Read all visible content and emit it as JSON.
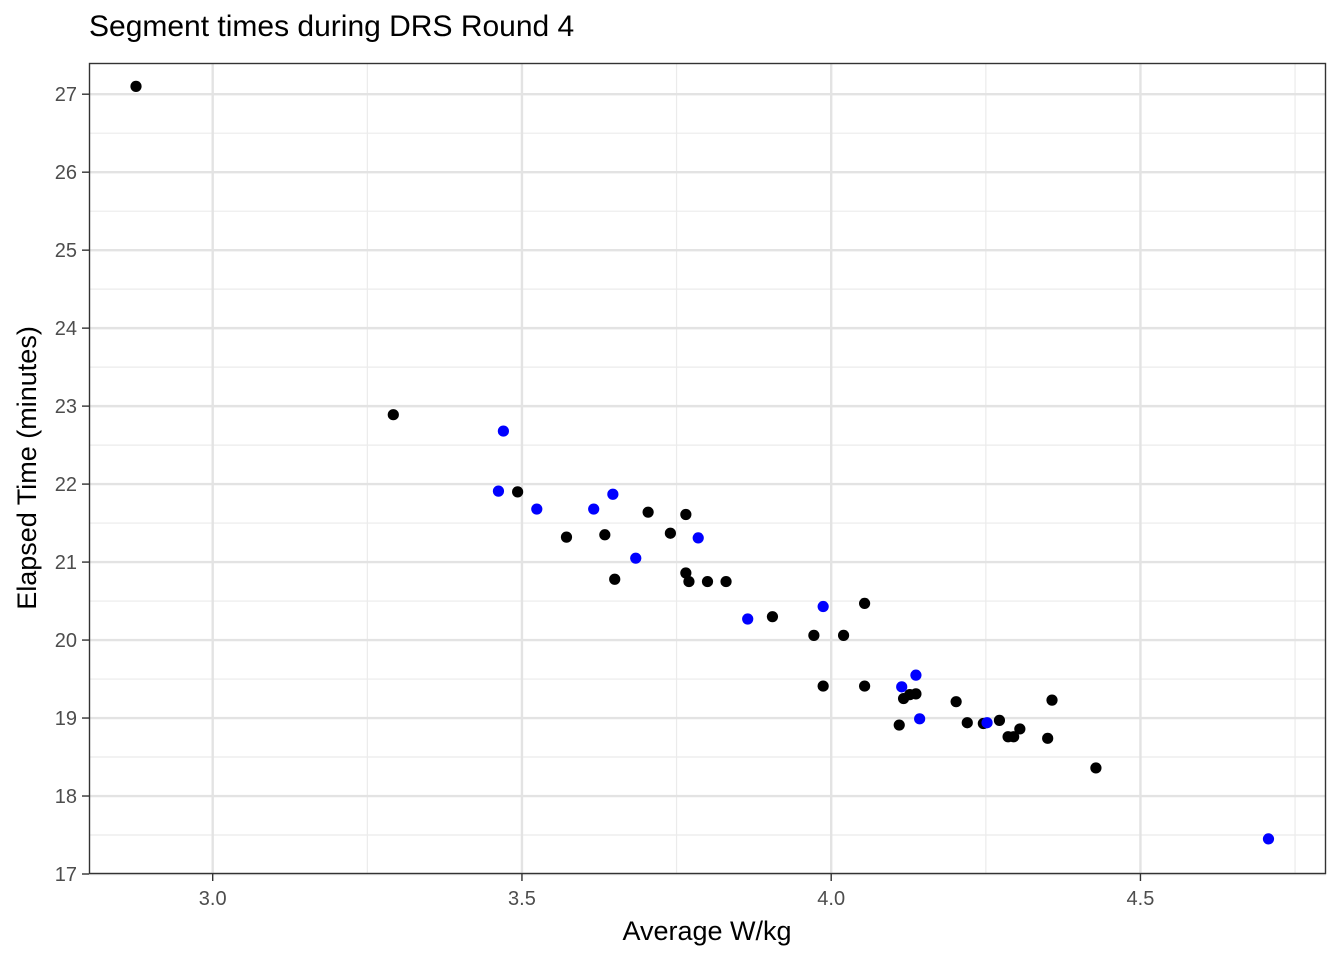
{
  "chart_data": {
    "type": "scatter",
    "title": "Segment times during DRS Round 4",
    "xlabel": "Average W/kg",
    "ylabel": "Elapsed Time (minutes)",
    "xlim": [
      2.8,
      4.8
    ],
    "ylim": [
      17,
      27.4
    ],
    "x_ticks": [
      3.0,
      3.5,
      4.0,
      4.5
    ],
    "x_tick_labels": [
      "3.0",
      "3.5",
      "4.0",
      "4.5"
    ],
    "y_ticks": [
      17,
      18,
      19,
      20,
      21,
      22,
      23,
      24,
      25,
      26,
      27
    ],
    "y_tick_labels": [
      "17",
      "18",
      "19",
      "20",
      "21",
      "22",
      "23",
      "24",
      "25",
      "26",
      "27"
    ],
    "grid": true,
    "theme": "bw",
    "series": [
      {
        "color": "#000000",
        "points": [
          [
            2.876,
            27.1
          ],
          [
            3.292,
            22.89
          ],
          [
            3.493,
            21.9
          ],
          [
            3.572,
            21.32
          ],
          [
            3.634,
            21.35
          ],
          [
            3.65,
            20.78
          ],
          [
            3.704,
            21.64
          ],
          [
            3.74,
            21.37
          ],
          [
            3.765,
            21.61
          ],
          [
            3.765,
            20.86
          ],
          [
            3.77,
            20.75
          ],
          [
            3.8,
            20.75
          ],
          [
            3.83,
            20.75
          ],
          [
            3.905,
            20.3
          ],
          [
            3.972,
            20.06
          ],
          [
            3.987,
            19.41
          ],
          [
            4.02,
            20.06
          ],
          [
            4.054,
            20.47
          ],
          [
            4.054,
            19.41
          ],
          [
            4.11,
            18.91
          ],
          [
            4.117,
            19.25
          ],
          [
            4.127,
            19.3
          ],
          [
            4.137,
            19.31
          ],
          [
            4.202,
            19.21
          ],
          [
            4.22,
            18.94
          ],
          [
            4.246,
            18.93
          ],
          [
            4.272,
            18.97
          ],
          [
            4.286,
            18.76
          ],
          [
            4.295,
            18.76
          ],
          [
            4.305,
            18.86
          ],
          [
            4.35,
            18.74
          ],
          [
            4.357,
            19.23
          ],
          [
            4.428,
            18.36
          ]
        ]
      },
      {
        "color": "#0000ff",
        "points": [
          [
            3.462,
            21.91
          ],
          [
            3.47,
            22.68
          ],
          [
            3.524,
            21.68
          ],
          [
            3.616,
            21.68
          ],
          [
            3.647,
            21.87
          ],
          [
            3.684,
            21.05
          ],
          [
            3.785,
            21.31
          ],
          [
            3.865,
            20.27
          ],
          [
            3.987,
            20.43
          ],
          [
            4.114,
            19.4
          ],
          [
            4.137,
            19.55
          ],
          [
            4.143,
            18.99
          ],
          [
            4.252,
            18.94
          ],
          [
            4.707,
            17.45
          ]
        ]
      }
    ]
  }
}
